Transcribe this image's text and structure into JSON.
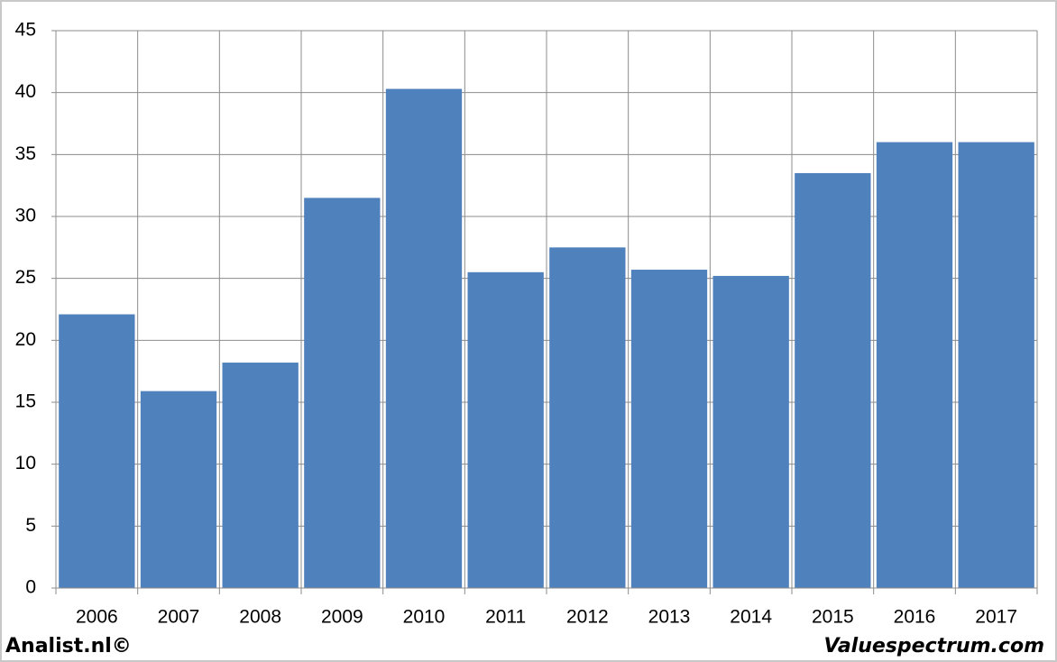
{
  "chart_data": {
    "type": "bar",
    "categories": [
      "2006",
      "2007",
      "2008",
      "2009",
      "2010",
      "2011",
      "2012",
      "2013",
      "2014",
      "2015",
      "2016",
      "2017"
    ],
    "values": [
      22.1,
      15.9,
      18.2,
      31.5,
      40.3,
      25.5,
      27.5,
      25.7,
      25.2,
      33.5,
      36.0,
      36.0
    ],
    "color": "#4f81bd",
    "ylim": [
      0,
      45
    ],
    "yticks": [
      0,
      5,
      10,
      15,
      20,
      25,
      30,
      35,
      40,
      45
    ],
    "grid": true
  },
  "footer": {
    "left": "Analist.nl©",
    "right": "Valuespectrum.com"
  }
}
